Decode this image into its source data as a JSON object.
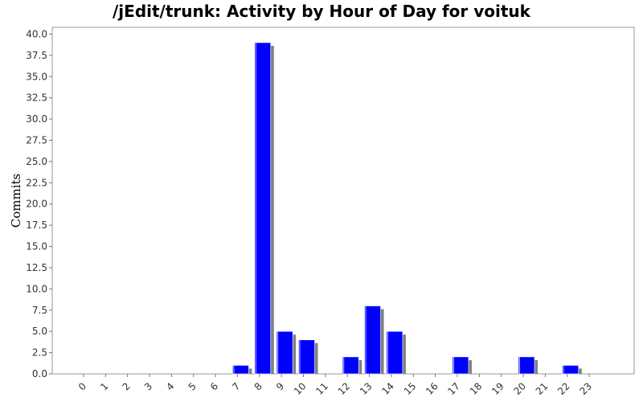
{
  "chart_data": {
    "type": "bar",
    "title": "/jEdit/trunk: Activity by Hour of Day for voituk",
    "xlabel": "",
    "ylabel": "Commits",
    "categories": [
      "0",
      "1",
      "2",
      "3",
      "4",
      "5",
      "6",
      "7",
      "8",
      "9",
      "10",
      "11",
      "12",
      "13",
      "14",
      "15",
      "16",
      "17",
      "18",
      "19",
      "20",
      "21",
      "22",
      "23"
    ],
    "values": [
      0,
      0,
      0,
      0,
      0,
      0,
      0,
      1,
      39,
      5,
      4,
      0,
      2,
      8,
      5,
      0,
      0,
      2,
      0,
      0,
      2,
      0,
      1,
      0
    ],
    "yticks": [
      "0.0",
      "2.5",
      "5.0",
      "7.5",
      "10.0",
      "12.5",
      "15.0",
      "17.5",
      "20.0",
      "22.5",
      "25.0",
      "27.5",
      "30.0",
      "32.5",
      "35.0",
      "37.5",
      "40.0"
    ],
    "ylim": [
      0,
      40.8
    ],
    "grid": false,
    "legend": "none",
    "bar_color": "#0000ff",
    "shadow_color": "#808080"
  }
}
